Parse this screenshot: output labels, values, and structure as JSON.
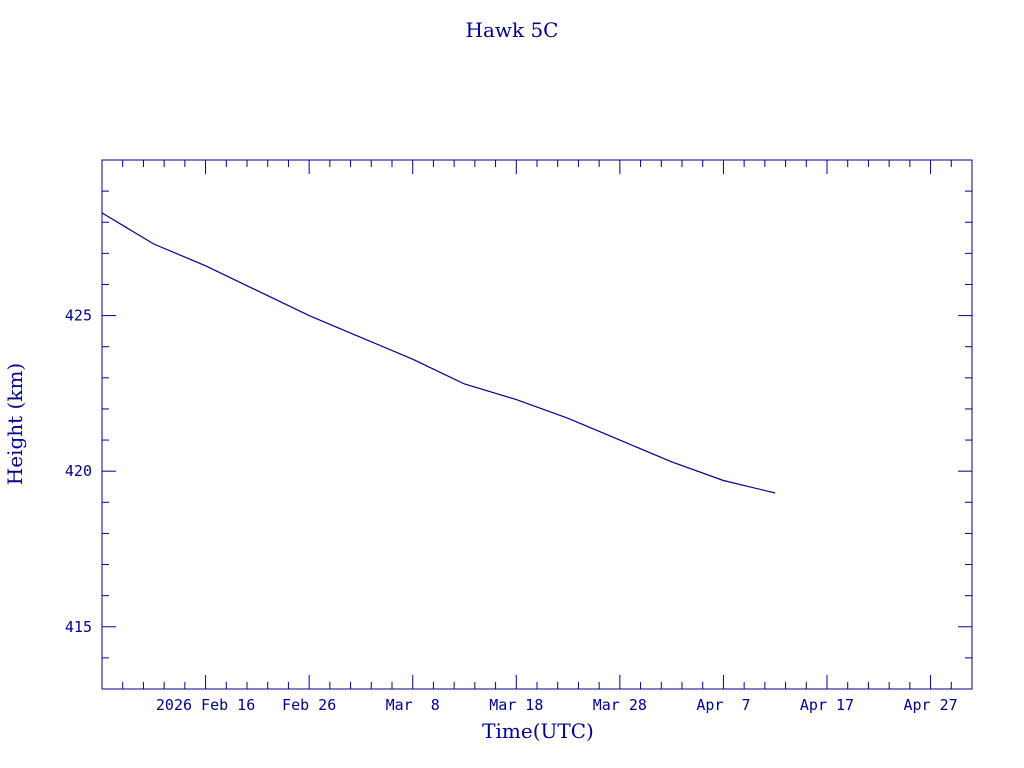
{
  "colors": {
    "axis": "#00008b",
    "line": "#00008b",
    "background": "#ffffff"
  },
  "chart_data": {
    "type": "line",
    "title": "Hawk 5C",
    "xlabel": "Time(UTC)",
    "ylabel": "Height (km)",
    "x_type": "date",
    "xlim": [
      "2026-02-06",
      "2026-05-01"
    ],
    "ylim": [
      413,
      430
    ],
    "grid": false,
    "x_ticks": [
      {
        "date": "2026-02-16",
        "label": "2026 Feb 16"
      },
      {
        "date": "2026-02-26",
        "label": "Feb 26"
      },
      {
        "date": "2026-03-08",
        "label": "Mar  8"
      },
      {
        "date": "2026-03-18",
        "label": "Mar 18"
      },
      {
        "date": "2026-03-28",
        "label": "Mar 28"
      },
      {
        "date": "2026-04-07",
        "label": "Apr  7"
      },
      {
        "date": "2026-04-17",
        "label": "Apr 17"
      },
      {
        "date": "2026-04-27",
        "label": "Apr 27"
      }
    ],
    "y_ticks": [
      415,
      420,
      425
    ],
    "series": [
      {
        "x": [
          "2026-02-06",
          "2026-02-11",
          "2026-02-16",
          "2026-02-21",
          "2026-02-26",
          "2026-03-03",
          "2026-03-08",
          "2026-03-13",
          "2026-03-18",
          "2026-03-23",
          "2026-03-28",
          "2026-04-02",
          "2026-04-07",
          "2026-04-12"
        ],
        "y": [
          428.3,
          427.3,
          426.6,
          425.8,
          425.0,
          424.3,
          423.6,
          422.8,
          422.3,
          421.7,
          421.0,
          420.3,
          419.7,
          419.3
        ]
      }
    ]
  }
}
